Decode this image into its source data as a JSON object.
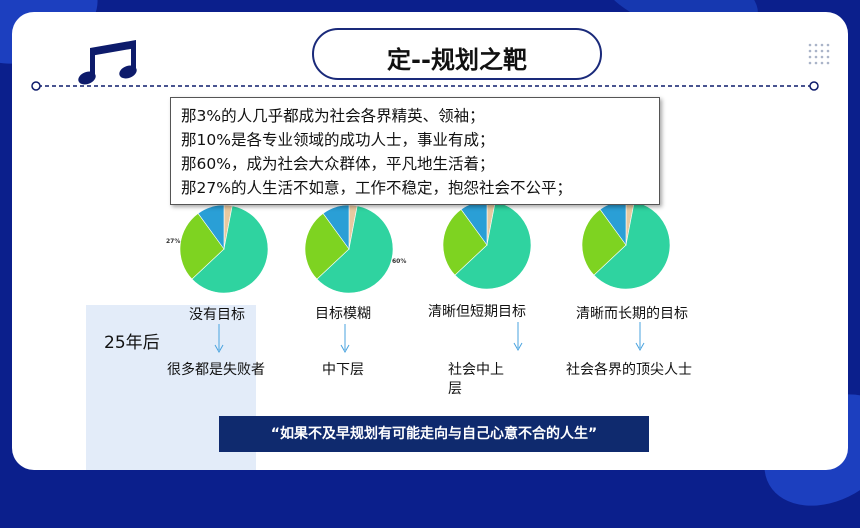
{
  "title": "定--规划之靶",
  "textbox_lines": [
    "那3%的人几乎都成为社会各界精英、领袖；",
    "那10%是各专业领域的成功人士，事业有成；",
    "那60%，成为社会大众群体，平凡地生活着；",
    "那27%的人生活不如意，工作不稳定，抱怨社会不公平；"
  ],
  "pie_labels": {
    "left": "27%",
    "right": "60%"
  },
  "after_years": "25年后",
  "groups": [
    {
      "label": "没有目标",
      "outcome": "很多都是失败者"
    },
    {
      "label": "目标模糊",
      "outcome": "中下层"
    },
    {
      "label": "清晰但短期目标",
      "outcome": "社会中上\n层"
    },
    {
      "label": "清晰而长期的目标",
      "outcome": "社会各界的顶尖人士"
    }
  ],
  "banner": "“如果不及早规划有可能走向与自己心意不合的人生”",
  "colors": {
    "background": "#0b1f8c",
    "pie_green": "#2fd3a0",
    "pie_lime": "#7ed321",
    "pie_blue": "#2a9fd6",
    "pie_tan": "#e8c9a0",
    "banner": "#0f2a6e"
  },
  "icons": [
    "music-note-icon",
    "dot-grid-icon",
    "down-arrow-icon"
  ]
}
